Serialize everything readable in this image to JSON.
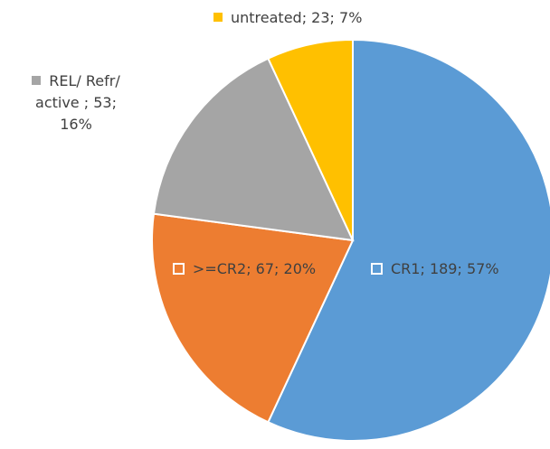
{
  "chart_data": {
    "type": "pie",
    "categories": [
      "CR1",
      ">=CR2",
      "REL/ Refr/ active",
      "untreated"
    ],
    "values": [
      189,
      67,
      53,
      23
    ],
    "value_labels": [
      "CR1; 189; 57%",
      ">=CR2; 67; 20%",
      "REL/ Refr/ active ; 53; 16%",
      "untreated; 23; 7%"
    ],
    "colors": [
      "#5b9bd5",
      "#ed7d31",
      "#a5a5a5",
      "#ffc000"
    ]
  }
}
